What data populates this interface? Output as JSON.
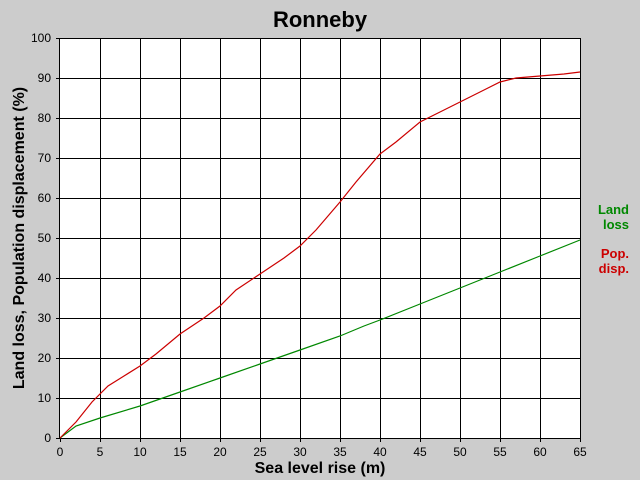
{
  "chart_data": {
    "type": "line",
    "title": "Ronneby",
    "xlabel": "Sea level rise (m)",
    "ylabel": "Land loss, Population displacement (%)",
    "xlim": [
      0,
      65
    ],
    "ylim": [
      0,
      100
    ],
    "xticks": [
      0,
      5,
      10,
      15,
      20,
      25,
      30,
      35,
      40,
      45,
      50,
      55,
      60,
      65
    ],
    "yticks": [
      0,
      10,
      20,
      30,
      40,
      50,
      60,
      70,
      80,
      90,
      100
    ],
    "grid": true,
    "legend_position": "right",
    "series": [
      {
        "name_lines": [
          "Land",
          "loss"
        ],
        "color": "#008800",
        "x": [
          0,
          2,
          5,
          10,
          15,
          20,
          25,
          30,
          35,
          38,
          40,
          45,
          50,
          55,
          60,
          65
        ],
        "y": [
          0,
          3,
          5,
          8,
          11.5,
          15,
          18.5,
          22,
          25.5,
          28,
          29.5,
          33.5,
          37.5,
          41.5,
          45.5,
          49.5
        ]
      },
      {
        "name_lines": [
          "Pop.",
          "disp."
        ],
        "color": "#cc0000",
        "x": [
          0,
          2,
          4,
          6,
          8,
          10,
          12,
          15,
          18,
          20,
          22,
          25,
          28,
          30,
          32,
          35,
          37,
          40,
          42,
          45,
          48,
          50,
          53,
          55,
          57,
          60,
          63,
          65
        ],
        "y": [
          0,
          4,
          9,
          13,
          15.5,
          18,
          21,
          26,
          30,
          33,
          37,
          41,
          45,
          48,
          52,
          59,
          64,
          71,
          74,
          79,
          82,
          84,
          87,
          89,
          90,
          90.5,
          91,
          91.5
        ]
      }
    ]
  }
}
